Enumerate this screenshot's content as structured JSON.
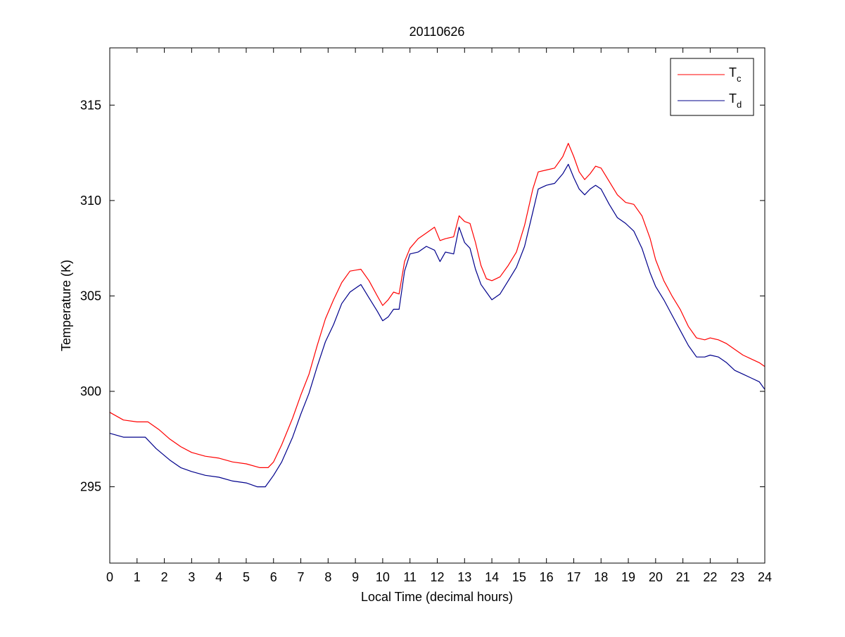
{
  "chart_data": {
    "type": "line",
    "title": "20110626",
    "xlabel": "Local Time (decimal hours)",
    "ylabel": "Temperature (K)",
    "xlim": [
      0,
      24
    ],
    "ylim": [
      291,
      318
    ],
    "xticks": [
      0,
      1,
      2,
      3,
      4,
      5,
      6,
      7,
      8,
      9,
      10,
      11,
      12,
      13,
      14,
      15,
      16,
      17,
      18,
      19,
      20,
      21,
      22,
      23,
      24
    ],
    "yticks": [
      295,
      300,
      305,
      310,
      315
    ],
    "grid": false,
    "legend_position": "top-right",
    "series": [
      {
        "name": "T",
        "subscript": "c",
        "color": "#ff0000",
        "x": [
          0,
          0.5,
          1,
          1.4,
          1.8,
          2.2,
          2.6,
          3,
          3.5,
          4,
          4.5,
          5,
          5.5,
          5.8,
          6,
          6.3,
          6.7,
          7,
          7.3,
          7.6,
          7.9,
          8.2,
          8.5,
          8.8,
          9.2,
          9.5,
          9.8,
          10,
          10.2,
          10.4,
          10.6,
          10.8,
          11,
          11.3,
          11.6,
          11.9,
          12.1,
          12.3,
          12.6,
          12.8,
          13,
          13.2,
          13.4,
          13.6,
          13.8,
          14,
          14.3,
          14.6,
          14.9,
          15.2,
          15.5,
          15.7,
          16,
          16.3,
          16.6,
          16.8,
          17,
          17.2,
          17.4,
          17.6,
          17.8,
          18,
          18.3,
          18.6,
          18.9,
          19.2,
          19.5,
          19.8,
          20,
          20.3,
          20.6,
          20.9,
          21.2,
          21.5,
          21.8,
          22,
          22.3,
          22.6,
          22.9,
          23.2,
          23.5,
          23.8,
          24
        ],
        "y": [
          298.9,
          298.5,
          298.4,
          298.4,
          298.0,
          297.5,
          297.1,
          296.8,
          296.6,
          296.5,
          296.3,
          296.2,
          296.0,
          296.0,
          296.3,
          297.2,
          298.6,
          299.8,
          300.9,
          302.4,
          303.8,
          304.8,
          305.7,
          306.3,
          306.4,
          305.8,
          305.0,
          304.5,
          304.8,
          305.2,
          305.1,
          306.8,
          307.5,
          308.0,
          308.3,
          308.6,
          307.9,
          308.0,
          308.1,
          309.2,
          308.9,
          308.8,
          307.8,
          306.6,
          305.9,
          305.8,
          306.0,
          306.6,
          307.3,
          308.7,
          310.6,
          311.5,
          311.6,
          311.7,
          312.3,
          313.0,
          312.3,
          311.5,
          311.1,
          311.4,
          311.8,
          311.7,
          311.0,
          310.3,
          309.9,
          309.8,
          309.2,
          308.0,
          306.9,
          305.8,
          305.0,
          304.3,
          303.4,
          302.8,
          302.7,
          302.8,
          302.7,
          302.5,
          302.2,
          301.9,
          301.7,
          301.5,
          301.3
        ]
      },
      {
        "name": "T",
        "subscript": "d",
        "color": "#00008b",
        "x": [
          0,
          0.5,
          1,
          1.3,
          1.7,
          2.2,
          2.6,
          3,
          3.5,
          4,
          4.5,
          5,
          5.4,
          5.7,
          6,
          6.3,
          6.7,
          7,
          7.3,
          7.6,
          7.9,
          8.2,
          8.5,
          8.8,
          9.2,
          9.5,
          9.8,
          10,
          10.2,
          10.4,
          10.6,
          10.8,
          11,
          11.3,
          11.6,
          11.9,
          12.1,
          12.3,
          12.6,
          12.8,
          13,
          13.2,
          13.4,
          13.6,
          13.8,
          14,
          14.3,
          14.6,
          14.9,
          15.2,
          15.5,
          15.7,
          16,
          16.3,
          16.6,
          16.8,
          17,
          17.2,
          17.4,
          17.6,
          17.8,
          18,
          18.3,
          18.6,
          18.9,
          19.2,
          19.5,
          19.8,
          20,
          20.3,
          20.6,
          20.9,
          21.2,
          21.5,
          21.8,
          22,
          22.3,
          22.6,
          22.9,
          23.2,
          23.5,
          23.8,
          24
        ],
        "y": [
          297.8,
          297.6,
          297.6,
          297.6,
          297.0,
          296.4,
          296.0,
          295.8,
          295.6,
          295.5,
          295.3,
          295.2,
          295.0,
          295.0,
          295.6,
          296.3,
          297.6,
          298.8,
          299.9,
          301.3,
          302.6,
          303.5,
          304.6,
          305.2,
          305.6,
          304.9,
          304.2,
          303.7,
          303.9,
          304.3,
          304.3,
          306.3,
          307.2,
          307.3,
          307.6,
          307.4,
          306.8,
          307.3,
          307.2,
          308.6,
          307.8,
          307.5,
          306.4,
          305.6,
          305.2,
          304.8,
          305.1,
          305.8,
          306.5,
          307.6,
          309.4,
          310.6,
          310.8,
          310.9,
          311.4,
          311.9,
          311.2,
          310.6,
          310.3,
          310.6,
          310.8,
          310.6,
          309.8,
          309.1,
          308.8,
          308.4,
          307.5,
          306.2,
          305.5,
          304.8,
          304.0,
          303.2,
          302.4,
          301.8,
          301.8,
          301.9,
          301.8,
          301.5,
          301.1,
          300.9,
          300.7,
          300.5,
          300.1
        ]
      }
    ]
  }
}
